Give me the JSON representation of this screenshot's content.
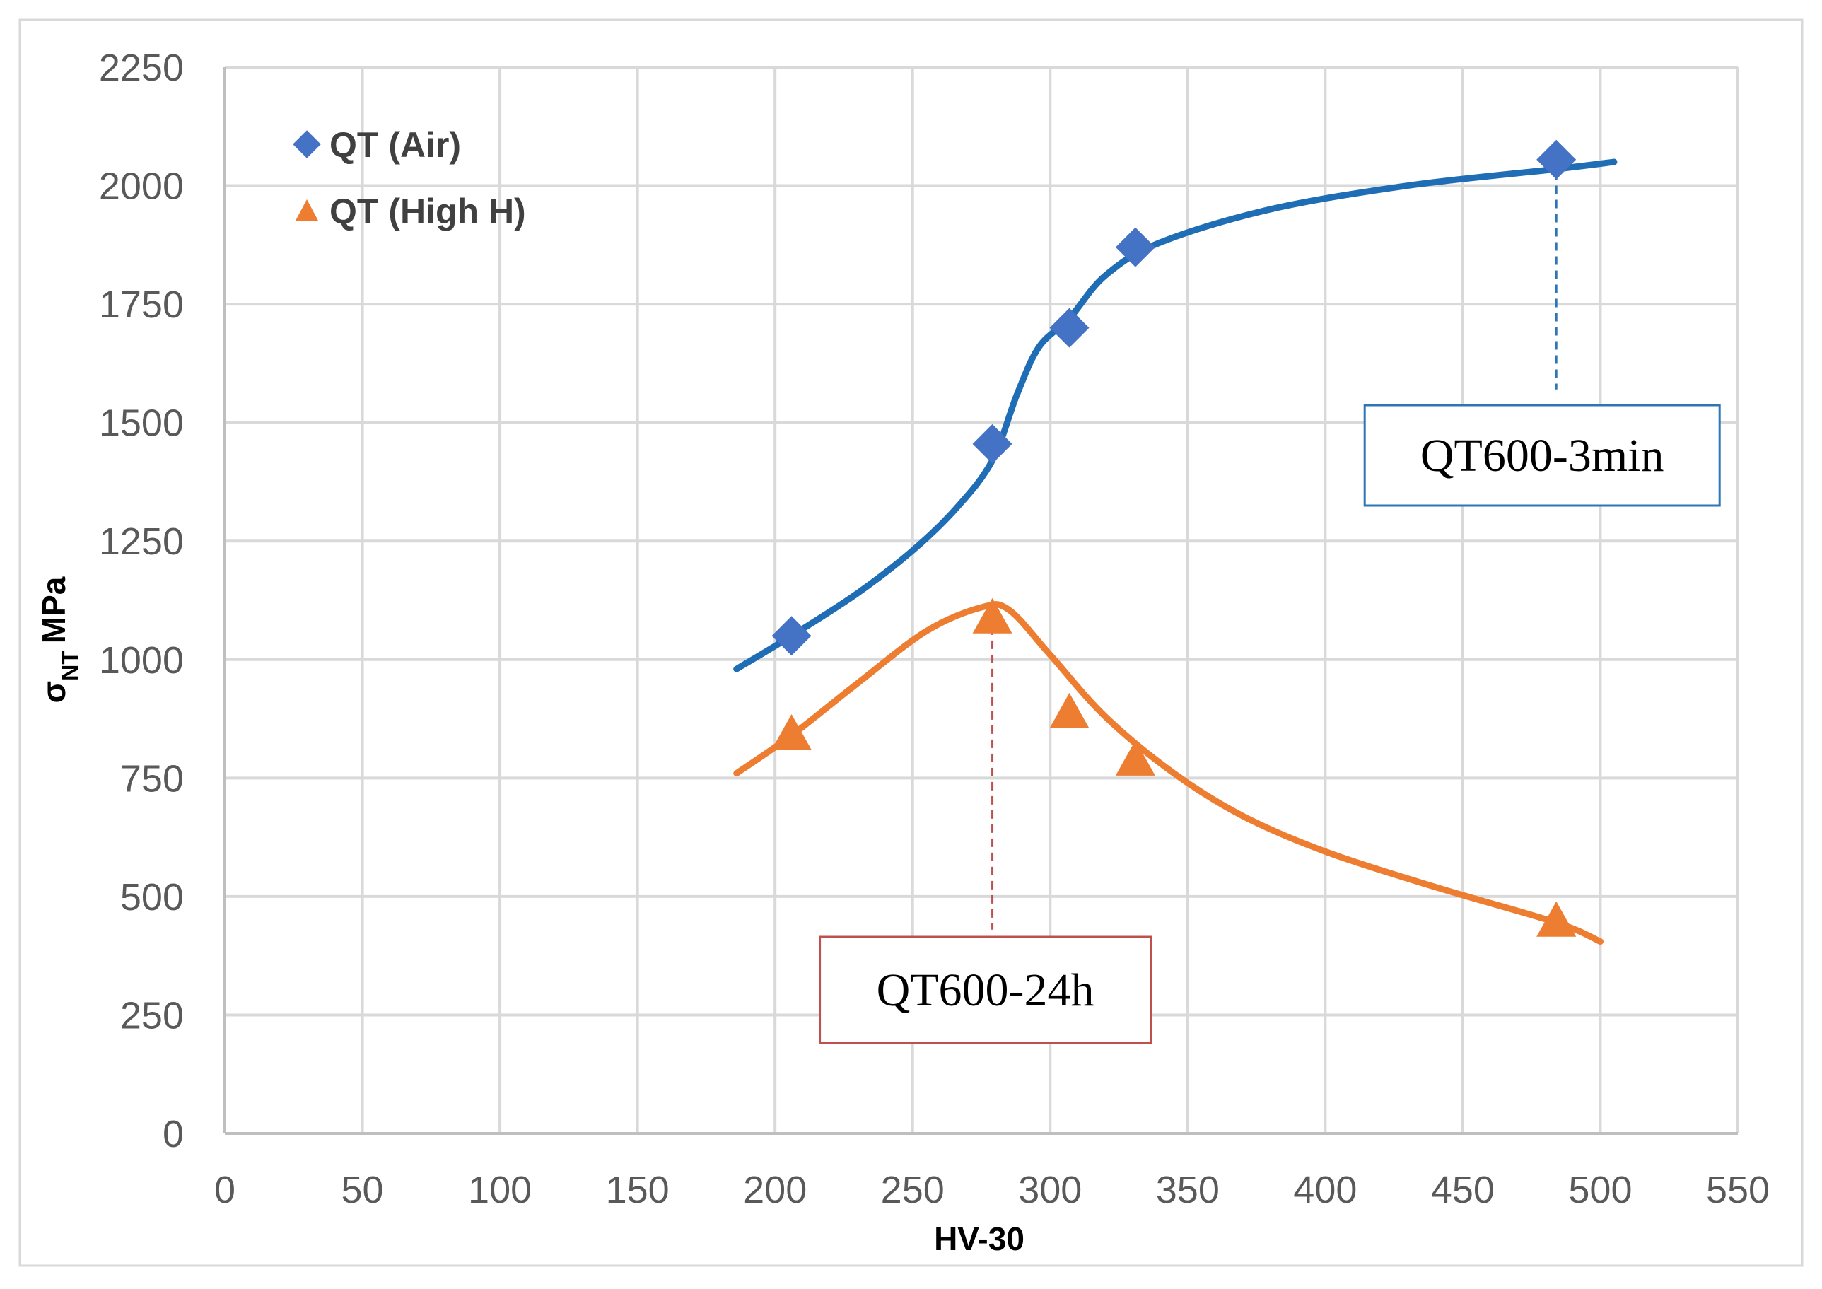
{
  "chart_data": {
    "type": "scatter",
    "title": "",
    "xlabel": "HV-30",
    "ylabel_main": "σ",
    "ylabel_sub": "NT",
    "ylabel_unit": "MPa",
    "xlim": [
      0,
      550
    ],
    "ylim": [
      0,
      2250
    ],
    "x_ticks": [
      0,
      50,
      100,
      150,
      200,
      250,
      300,
      350,
      400,
      450,
      500,
      550
    ],
    "y_ticks": [
      0,
      250,
      500,
      750,
      1000,
      1250,
      1500,
      1750,
      2000,
      2250
    ],
    "grid": true,
    "legend_position": "top-left",
    "series": [
      {
        "name": "QT (Air)",
        "color": "#4472C4",
        "marker": "diamond",
        "points": [
          {
            "x": 206,
            "y": 1050
          },
          {
            "x": 279,
            "y": 1455
          },
          {
            "x": 307,
            "y": 1700
          },
          {
            "x": 331,
            "y": 1870
          },
          {
            "x": 484,
            "y": 2055
          }
        ],
        "trend_color": "#1F6DB5",
        "trend": [
          {
            "x": 186,
            "y": 980
          },
          {
            "x": 206,
            "y": 1050
          },
          {
            "x": 230,
            "y": 1140
          },
          {
            "x": 250,
            "y": 1230
          },
          {
            "x": 266,
            "y": 1320
          },
          {
            "x": 279,
            "y": 1420
          },
          {
            "x": 288,
            "y": 1560
          },
          {
            "x": 296,
            "y": 1660
          },
          {
            "x": 307,
            "y": 1720
          },
          {
            "x": 320,
            "y": 1810
          },
          {
            "x": 340,
            "y": 1880
          },
          {
            "x": 380,
            "y": 1950
          },
          {
            "x": 430,
            "y": 2000
          },
          {
            "x": 484,
            "y": 2035
          },
          {
            "x": 505,
            "y": 2050
          }
        ]
      },
      {
        "name": "QT (High H)",
        "color": "#ED7D31",
        "marker": "triangle",
        "points": [
          {
            "x": 206,
            "y": 840
          },
          {
            "x": 279,
            "y": 1085
          },
          {
            "x": 307,
            "y": 885
          },
          {
            "x": 331,
            "y": 785
          },
          {
            "x": 484,
            "y": 445
          }
        ],
        "trend_color": "#ED7D31",
        "trend": [
          {
            "x": 186,
            "y": 760
          },
          {
            "x": 206,
            "y": 840
          },
          {
            "x": 230,
            "y": 950
          },
          {
            "x": 255,
            "y": 1060
          },
          {
            "x": 275,
            "y": 1110
          },
          {
            "x": 285,
            "y": 1105
          },
          {
            "x": 300,
            "y": 1010
          },
          {
            "x": 320,
            "y": 880
          },
          {
            "x": 345,
            "y": 760
          },
          {
            "x": 370,
            "y": 670
          },
          {
            "x": 400,
            "y": 595
          },
          {
            "x": 440,
            "y": 520
          },
          {
            "x": 484,
            "y": 445
          },
          {
            "x": 500,
            "y": 405
          }
        ]
      }
    ],
    "annotations": [
      {
        "label": "QT600-3min",
        "series": "QT (Air)",
        "x": 484,
        "y_top": 2030,
        "y_bottom": 1570,
        "color": "#2E75B6"
      },
      {
        "label": "QT600-24h",
        "series": "QT (High H)",
        "x": 279,
        "y_top": 1070,
        "y_bottom": 430,
        "color": "#C0504D"
      }
    ]
  }
}
